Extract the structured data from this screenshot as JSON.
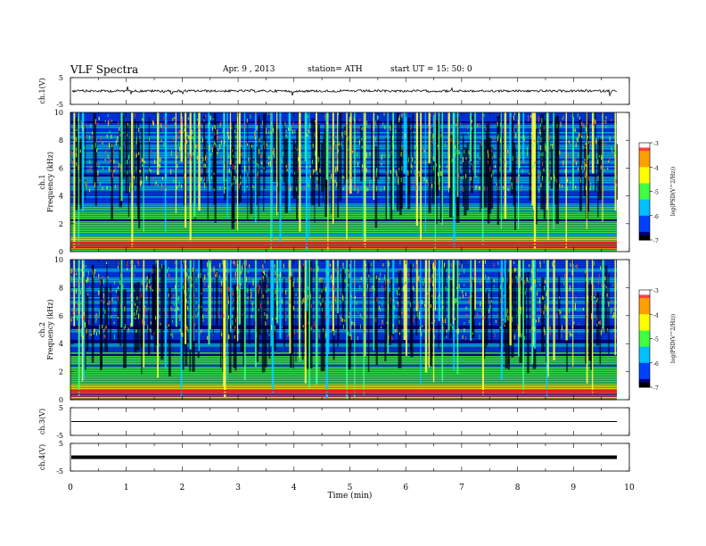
{
  "header": {
    "title": "VLF Spectra",
    "date": "Apr. 9 , 2013",
    "station": "station= ATH",
    "start": "start UT = 15: 50: 0"
  },
  "colorbar": {
    "label": "log(PSD(V^2/Hz))",
    "ticks": [
      "-3",
      "-4",
      "-5",
      "-6",
      "-7"
    ],
    "colors": [
      "#ffffff",
      "#ff4040",
      "#ffa000",
      "#ffff00",
      "#40ff40",
      "#00c0ff",
      "#0040ff",
      "#000080",
      "#000000"
    ]
  },
  "chart_data": [
    {
      "type": "line",
      "panel": "ch1-waveform",
      "ylabel": "ch.1(V)",
      "yticks": [
        "5",
        "-5"
      ],
      "ylim": [
        -5,
        5
      ],
      "baseline": 0,
      "description_values": "noise waveform around 0 V with frequent spikes"
    },
    {
      "type": "heatmap",
      "panel": "ch1-spectrogram",
      "ylabel": "ch.1 Frequency (kHz)",
      "yticks": [
        "0",
        "2",
        "4",
        "6",
        "8",
        "10"
      ],
      "ylim": [
        0,
        10
      ],
      "xlim": [
        0,
        9.8
      ]
    },
    {
      "type": "heatmap",
      "panel": "ch2-spectrogram",
      "ylabel": "ch.2 Frequency (kHz)",
      "yticks": [
        "0",
        "2",
        "4",
        "6",
        "8",
        "10"
      ],
      "ylim": [
        0,
        10
      ],
      "xlim": [
        0,
        9.8
      ]
    },
    {
      "type": "line",
      "panel": "ch3-waveform",
      "ylabel": "ch.3(V)",
      "yticks": [
        "5",
        "-5"
      ],
      "ylim": [
        -5,
        5
      ],
      "values": [
        0,
        0
      ]
    },
    {
      "type": "line",
      "panel": "ch4-waveform",
      "ylabel": "ch.4(V)",
      "yticks": [
        "5",
        "-5"
      ],
      "ylim": [
        -5,
        5
      ],
      "values": [
        0,
        0
      ]
    }
  ],
  "xaxis": {
    "label": "Time (min)",
    "ticks": [
      "0",
      "1",
      "2",
      "3",
      "4",
      "5",
      "6",
      "7",
      "8",
      "9",
      "10"
    ],
    "xlim": [
      0,
      10
    ]
  }
}
